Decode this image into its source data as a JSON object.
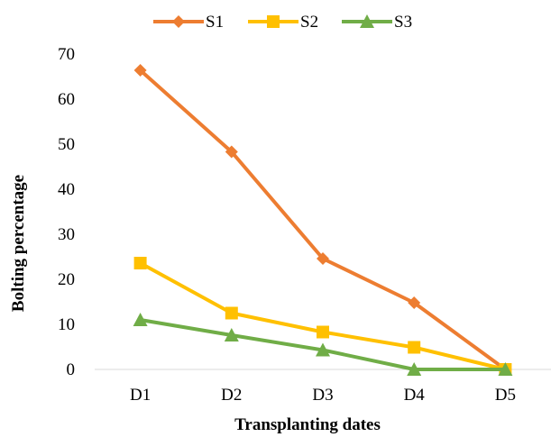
{
  "chart_data": {
    "type": "line",
    "categories": [
      "D1",
      "D2",
      "D3",
      "D4",
      "D5"
    ],
    "series": [
      {
        "name": "S1",
        "color": "#ED7D31",
        "marker": "diamond",
        "values": [
          66.4,
          48.3,
          24.6,
          14.8,
          0
        ]
      },
      {
        "name": "S2",
        "color": "#FFC000",
        "marker": "square",
        "values": [
          23.6,
          12.5,
          8.3,
          4.9,
          0
        ]
      },
      {
        "name": "S3",
        "color": "#70AD47",
        "marker": "triangle",
        "values": [
          11.0,
          7.6,
          4.3,
          0,
          0
        ]
      }
    ],
    "title": "",
    "xlabel": "Transplanting dates",
    "ylabel": "Bolting percentage",
    "ylim": [
      0,
      70
    ],
    "yticks": [
      0,
      10,
      20,
      30,
      40,
      50,
      60,
      70
    ],
    "grid": false,
    "legend_position": "top"
  }
}
